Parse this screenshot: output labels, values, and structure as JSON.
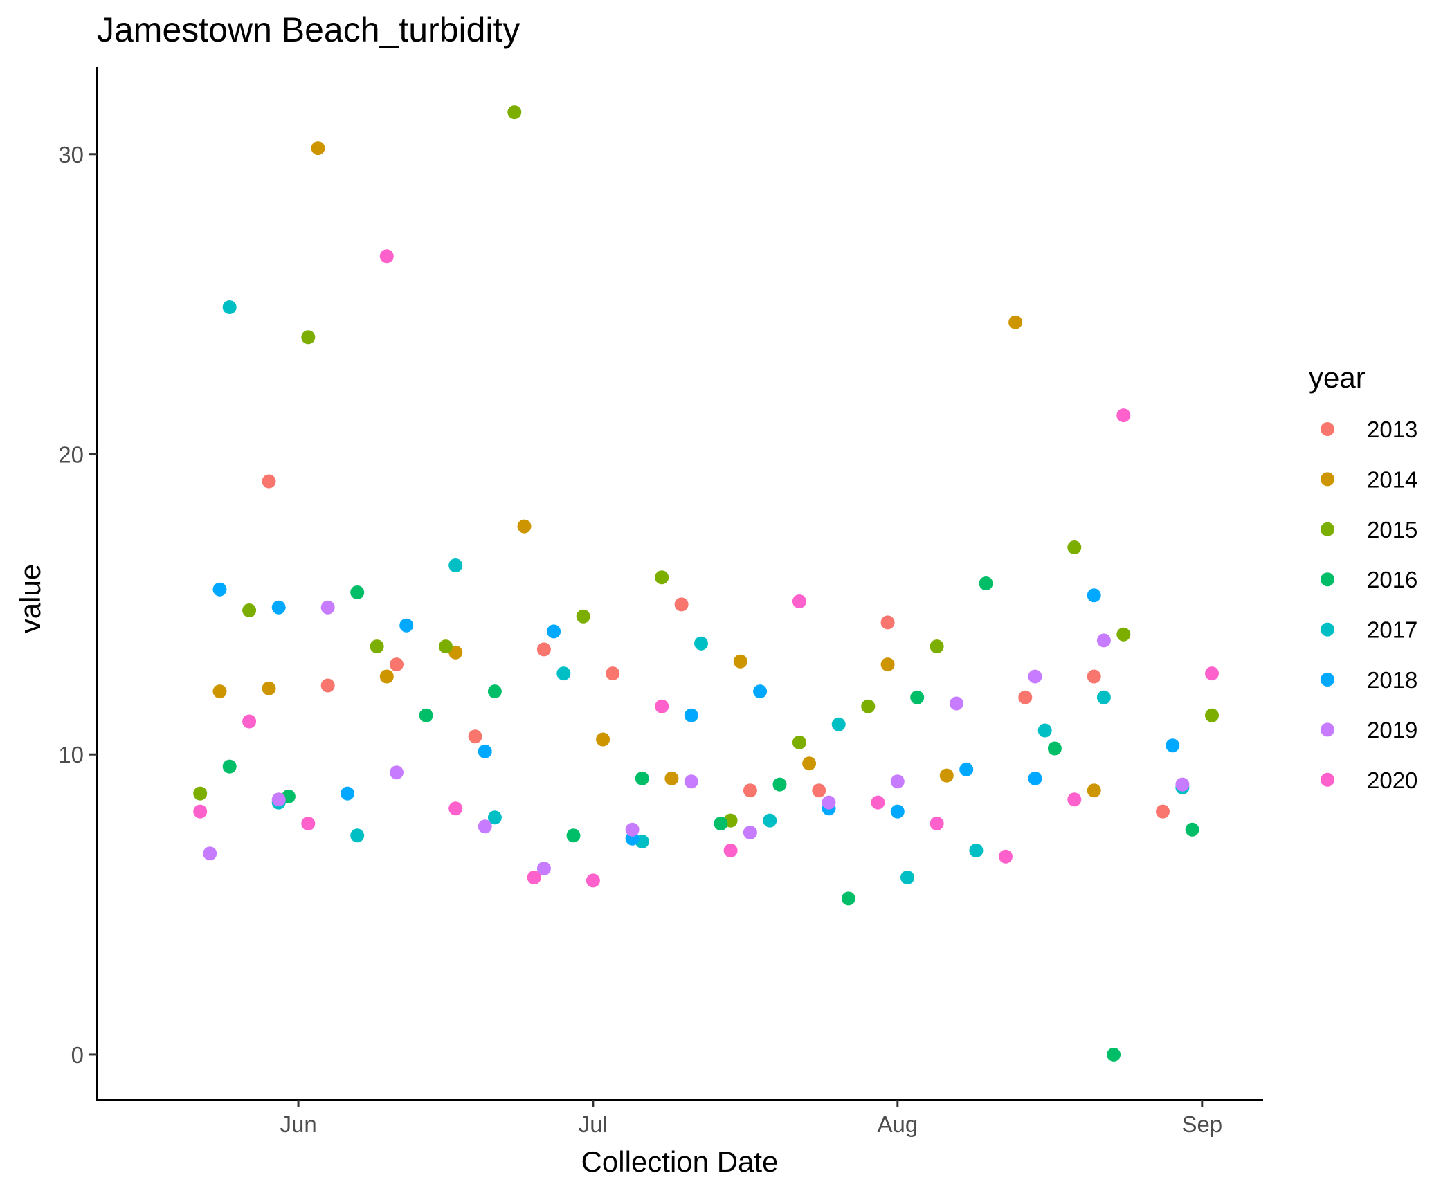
{
  "chart_data": {
    "type": "scatter",
    "title": "Jamestown Beach_turbidity",
    "xlabel": "Collection Date",
    "ylabel": "value",
    "x_ticks": [
      {
        "date": "06-01",
        "label": "Jun"
      },
      {
        "date": "07-01",
        "label": "Jul"
      },
      {
        "date": "08-01",
        "label": "Aug"
      },
      {
        "date": "09-01",
        "label": "Sep"
      }
    ],
    "y_ticks": [
      0,
      10,
      20,
      30
    ],
    "xlim": [
      "05-16",
      "09-02"
    ],
    "ylim": [
      -1.5,
      32.9
    ],
    "grid": false,
    "legend": {
      "title": "year",
      "position": "right"
    },
    "series": [
      {
        "name": "2013",
        "color": "#F8766D",
        "points": [
          {
            "x": "05-29",
            "y": 19.1
          },
          {
            "x": "06-04",
            "y": 12.3
          },
          {
            "x": "06-11",
            "y": 13.0
          },
          {
            "x": "06-19",
            "y": 10.6
          },
          {
            "x": "06-26",
            "y": 13.5
          },
          {
            "x": "07-03",
            "y": 12.7
          },
          {
            "x": "07-10",
            "y": 15.0
          },
          {
            "x": "07-17",
            "y": 8.8
          },
          {
            "x": "07-24",
            "y": 8.8
          },
          {
            "x": "07-31",
            "y": 14.4
          },
          {
            "x": "08-14",
            "y": 11.9
          },
          {
            "x": "08-21",
            "y": 12.6
          },
          {
            "x": "08-28",
            "y": 8.1
          }
        ]
      },
      {
        "name": "2014",
        "color": "#CD9600",
        "points": [
          {
            "x": "05-24",
            "y": 12.1
          },
          {
            "x": "05-29",
            "y": 12.2
          },
          {
            "x": "06-03",
            "y": 30.2
          },
          {
            "x": "06-10",
            "y": 12.6
          },
          {
            "x": "06-17",
            "y": 13.4
          },
          {
            "x": "06-24",
            "y": 17.6
          },
          {
            "x": "07-02",
            "y": 10.5
          },
          {
            "x": "07-09",
            "y": 9.2
          },
          {
            "x": "07-16",
            "y": 13.1
          },
          {
            "x": "07-23",
            "y": 9.7
          },
          {
            "x": "07-31",
            "y": 13.0
          },
          {
            "x": "08-06",
            "y": 9.3
          },
          {
            "x": "08-13",
            "y": 24.4
          },
          {
            "x": "08-21",
            "y": 8.8
          }
        ]
      },
      {
        "name": "2015",
        "color": "#7CAE00",
        "points": [
          {
            "x": "05-22",
            "y": 8.7
          },
          {
            "x": "05-27",
            "y": 14.8
          },
          {
            "x": "06-02",
            "y": 23.9
          },
          {
            "x": "06-09",
            "y": 13.6
          },
          {
            "x": "06-16",
            "y": 13.6
          },
          {
            "x": "06-23",
            "y": 31.4
          },
          {
            "x": "06-30",
            "y": 14.6
          },
          {
            "x": "07-08",
            "y": 15.9
          },
          {
            "x": "07-15",
            "y": 7.8
          },
          {
            "x": "07-22",
            "y": 10.4
          },
          {
            "x": "07-29",
            "y": 11.6
          },
          {
            "x": "08-05",
            "y": 13.6
          },
          {
            "x": "08-19",
            "y": 16.9
          },
          {
            "x": "08-24",
            "y": 14.0
          },
          {
            "x": "09-02",
            "y": 11.3
          }
        ]
      },
      {
        "name": "2016",
        "color": "#00BE67",
        "points": [
          {
            "x": "05-25",
            "y": 9.6
          },
          {
            "x": "05-31",
            "y": 8.6
          },
          {
            "x": "06-07",
            "y": 15.4
          },
          {
            "x": "06-14",
            "y": 11.3
          },
          {
            "x": "06-21",
            "y": 12.1
          },
          {
            "x": "06-29",
            "y": 7.3
          },
          {
            "x": "07-06",
            "y": 9.2
          },
          {
            "x": "07-14",
            "y": 7.7
          },
          {
            "x": "07-20",
            "y": 9.0
          },
          {
            "x": "07-27",
            "y": 5.2
          },
          {
            "x": "08-03",
            "y": 11.9
          },
          {
            "x": "08-10",
            "y": 15.7
          },
          {
            "x": "08-17",
            "y": 10.2
          },
          {
            "x": "08-23",
            "y": 0.0
          },
          {
            "x": "08-31",
            "y": 7.5
          }
        ]
      },
      {
        "name": "2017",
        "color": "#00BFC4",
        "points": [
          {
            "x": "05-25",
            "y": 24.9
          },
          {
            "x": "05-30",
            "y": 8.4
          },
          {
            "x": "06-07",
            "y": 7.3
          },
          {
            "x": "06-17",
            "y": 16.3
          },
          {
            "x": "06-21",
            "y": 7.9
          },
          {
            "x": "06-28",
            "y": 12.7
          },
          {
            "x": "07-06",
            "y": 7.1
          },
          {
            "x": "07-12",
            "y": 13.7
          },
          {
            "x": "07-19",
            "y": 7.8
          },
          {
            "x": "07-26",
            "y": 11.0
          },
          {
            "x": "08-02",
            "y": 5.9
          },
          {
            "x": "08-09",
            "y": 6.8
          },
          {
            "x": "08-16",
            "y": 10.8
          },
          {
            "x": "08-22",
            "y": 11.9
          },
          {
            "x": "08-30",
            "y": 8.9
          }
        ]
      },
      {
        "name": "2018",
        "color": "#00A9FF",
        "points": [
          {
            "x": "05-24",
            "y": 15.5
          },
          {
            "x": "05-30",
            "y": 14.9
          },
          {
            "x": "06-06",
            "y": 8.7
          },
          {
            "x": "06-12",
            "y": 14.3
          },
          {
            "x": "06-20",
            "y": 10.1
          },
          {
            "x": "06-27",
            "y": 14.1
          },
          {
            "x": "07-05",
            "y": 7.2
          },
          {
            "x": "07-11",
            "y": 11.3
          },
          {
            "x": "07-18",
            "y": 12.1
          },
          {
            "x": "07-25",
            "y": 8.2
          },
          {
            "x": "08-01",
            "y": 8.1
          },
          {
            "x": "08-08",
            "y": 9.5
          },
          {
            "x": "08-15",
            "y": 9.2
          },
          {
            "x": "08-21",
            "y": 15.3
          },
          {
            "x": "08-29",
            "y": 10.3
          }
        ]
      },
      {
        "name": "2019",
        "color": "#C77CFF",
        "points": [
          {
            "x": "05-23",
            "y": 6.7
          },
          {
            "x": "05-30",
            "y": 8.5
          },
          {
            "x": "06-04",
            "y": 14.9
          },
          {
            "x": "06-11",
            "y": 9.4
          },
          {
            "x": "06-20",
            "y": 7.6
          },
          {
            "x": "06-26",
            "y": 6.2
          },
          {
            "x": "07-05",
            "y": 7.5
          },
          {
            "x": "07-11",
            "y": 9.1
          },
          {
            "x": "07-17",
            "y": 7.4
          },
          {
            "x": "07-25",
            "y": 8.4
          },
          {
            "x": "08-01",
            "y": 9.1
          },
          {
            "x": "08-07",
            "y": 11.7
          },
          {
            "x": "08-15",
            "y": 12.6
          },
          {
            "x": "08-22",
            "y": 13.8
          },
          {
            "x": "08-30",
            "y": 9.0
          }
        ]
      },
      {
        "name": "2020",
        "color": "#FF61CC",
        "points": [
          {
            "x": "05-22",
            "y": 8.1
          },
          {
            "x": "05-27",
            "y": 11.1
          },
          {
            "x": "06-02",
            "y": 7.7
          },
          {
            "x": "06-10",
            "y": 26.6
          },
          {
            "x": "06-17",
            "y": 8.2
          },
          {
            "x": "06-25",
            "y": 5.9
          },
          {
            "x": "07-01",
            "y": 5.8
          },
          {
            "x": "07-08",
            "y": 11.6
          },
          {
            "x": "07-15",
            "y": 6.8
          },
          {
            "x": "07-22",
            "y": 15.1
          },
          {
            "x": "07-30",
            "y": 8.4
          },
          {
            "x": "08-05",
            "y": 7.7
          },
          {
            "x": "08-12",
            "y": 6.6
          },
          {
            "x": "08-19",
            "y": 8.5
          },
          {
            "x": "08-24",
            "y": 21.3
          },
          {
            "x": "09-02",
            "y": 12.7
          }
        ]
      }
    ]
  }
}
